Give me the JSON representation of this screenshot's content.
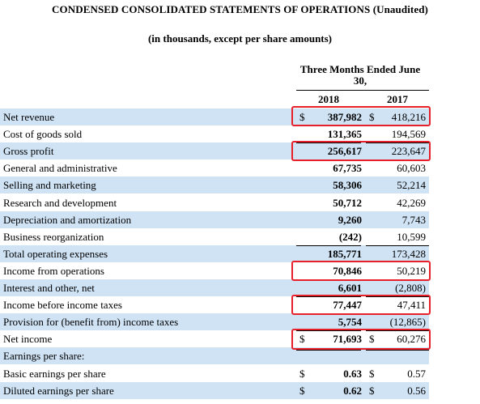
{
  "header": {
    "title": "CONDENSED CONSOLIDATED STATEMENTS OF OPERATIONS (Unaudited)",
    "subtitle": "(in thousands, except per share amounts)",
    "period_line1": "Three Months Ended June",
    "period_line2": "30,",
    "year_current": "2018",
    "year_prior": "2017"
  },
  "rows": [
    {
      "label": "Net revenue",
      "d1": "$",
      "v2018": "387,982",
      "d2": "$",
      "v2017": "418,216"
    },
    {
      "label": "Cost of goods sold",
      "d1": "",
      "v2018": "131,365",
      "d2": "",
      "v2017": "194,569"
    },
    {
      "label": "Gross profit",
      "d1": "",
      "v2018": "256,617",
      "d2": "",
      "v2017": "223,647"
    },
    {
      "label": "General and administrative",
      "d1": "",
      "v2018": "67,735",
      "d2": "",
      "v2017": "60,603"
    },
    {
      "label": "Selling and marketing",
      "d1": "",
      "v2018": "58,306",
      "d2": "",
      "v2017": "52,214"
    },
    {
      "label": "Research and development",
      "d1": "",
      "v2018": "50,712",
      "d2": "",
      "v2017": "42,269"
    },
    {
      "label": "Depreciation and amortization",
      "d1": "",
      "v2018": "9,260",
      "d2": "",
      "v2017": "7,743"
    },
    {
      "label": "Business reorganization",
      "d1": "",
      "v2018": "(242)",
      "d2": "",
      "v2017": "10,599"
    },
    {
      "label": "Total operating expenses",
      "d1": "",
      "v2018": "185,771",
      "d2": "",
      "v2017": "173,428"
    },
    {
      "label": "Income from operations",
      "d1": "",
      "v2018": "70,846",
      "d2": "",
      "v2017": "50,219"
    },
    {
      "label": "Interest and other, net",
      "d1": "",
      "v2018": "6,601",
      "d2": "",
      "v2017": "(2,808)"
    },
    {
      "label": "Income before income taxes",
      "d1": "",
      "v2018": "77,447",
      "d2": "",
      "v2017": "47,411"
    },
    {
      "label": "Provision for (benefit from) income taxes",
      "d1": "",
      "v2018": "5,754",
      "d2": "",
      "v2017": "(12,865)"
    },
    {
      "label": "Net income",
      "d1": "$",
      "v2018": "71,693",
      "d2": "$",
      "v2017": "60,276"
    },
    {
      "label": "Earnings per share:",
      "d1": "",
      "v2018": "",
      "d2": "",
      "v2017": ""
    },
    {
      "label": "Basic earnings per share",
      "d1": "$",
      "v2018": "0.63",
      "d2": "$",
      "v2017": "0.57"
    },
    {
      "label": "Diluted earnings per share",
      "d1": "$",
      "v2018": "0.62",
      "d2": "$",
      "v2017": "0.56"
    }
  ]
}
